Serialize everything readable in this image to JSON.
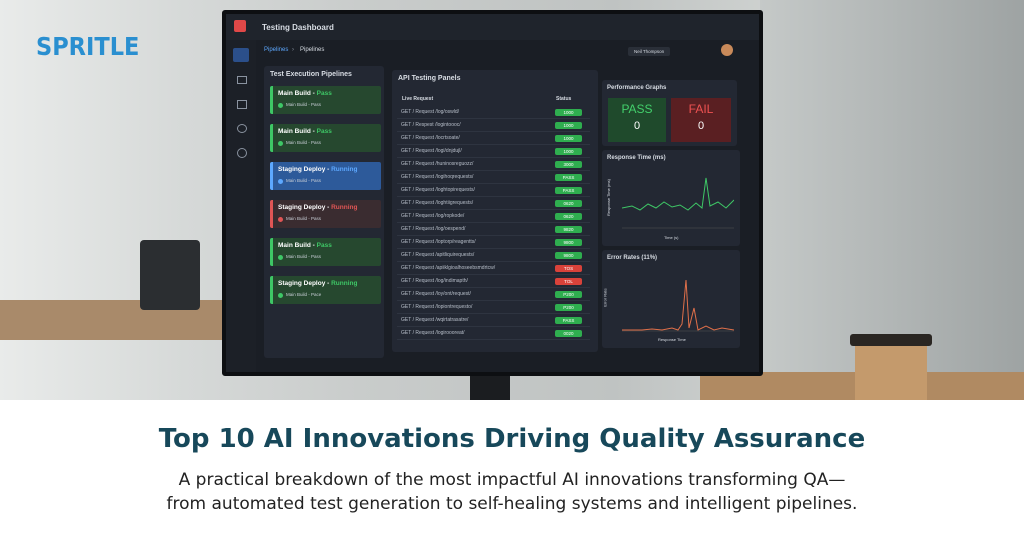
{
  "logo": "SPRITLE",
  "dashboard": {
    "title": "Testing Dashboard",
    "breadcrumb": [
      "Pipelines",
      "Pipelines"
    ],
    "user": "Neil Thompson",
    "pipelines": {
      "title": "Test Execution Pipelines",
      "items": [
        {
          "name": "Main Build -",
          "status": "Pass",
          "sub": "Main Build - Pass",
          "color": "#3ec766",
          "bg": "#26482f"
        },
        {
          "name": "Main Build -",
          "status": "Pass",
          "sub": "Main Build - Pass",
          "color": "#3ec766",
          "bg": "#26482f"
        },
        {
          "name": "Staging Deploy -",
          "status": "Running",
          "sub": "Main Build - Pass",
          "color": "#5da8ff",
          "bg": "#2d5a9a"
        },
        {
          "name": "Staging Deploy -",
          "status": "Running",
          "sub": "Main Build - Pass",
          "color": "#e05555",
          "bg": "#3a2c30"
        },
        {
          "name": "Main Build -",
          "status": "Pass",
          "sub": "Main Build - Pass",
          "color": "#3ec766",
          "bg": "#26482f"
        },
        {
          "name": "Staging Deploy -",
          "status": "Running",
          "sub": "Main Build - Pace",
          "color": "#3ec766",
          "bg": "#26482f"
        }
      ]
    },
    "api": {
      "title": "API Testing Panels",
      "headers": [
        "Live Request",
        "Status"
      ],
      "rows": [
        {
          "request": "GET / Request /log/oswld/",
          "status": "1000",
          "color": "#2fae4f"
        },
        {
          "request": "GET / Respest /logintoooc/",
          "status": "1000",
          "color": "#2fae4f"
        },
        {
          "request": "GET / Request /locrtsoate/",
          "status": "1000",
          "color": "#2fae4f"
        },
        {
          "request": "GET / Request /logi/dnjdujl/",
          "status": "1000",
          "color": "#2fae4f"
        },
        {
          "request": "GET / Request /huninosreguozz/",
          "status": "3000",
          "color": "#2fae4f"
        },
        {
          "request": "GET / Request /logihoqrequests/",
          "status": "PASS",
          "color": "#2fae4f"
        },
        {
          "request": "GET / Request /loghtopirequests/",
          "status": "PASS",
          "color": "#2fae4f"
        },
        {
          "request": "GET / Request /loghtiigrequests/",
          "status": "0620",
          "color": "#2fae4f"
        },
        {
          "request": "GET / Request /log/ropkode/",
          "status": "0620",
          "color": "#2fae4f"
        },
        {
          "request": "GET / Request /log/oespend/",
          "status": "9820",
          "color": "#2fae4f"
        },
        {
          "request": "GET / Request /loptorp/reagentts/",
          "status": "9800",
          "color": "#2fae4f"
        },
        {
          "request": "GET / Request /apitliquirequests/",
          "status": "9800",
          "color": "#2fae4f"
        },
        {
          "request": "GET / Request /apiiklgioalhoseebsmdrtcw/",
          "status": "TOS",
          "color": "#d9423a"
        },
        {
          "request": "GET / Request /log/indimapth/",
          "status": "TOL",
          "color": "#d9423a"
        },
        {
          "request": "GET / Request /loy/ont/request/",
          "status": "P200",
          "color": "#2fae4f"
        },
        {
          "request": "GET / Request /lopiontrequesto/",
          "status": "P200",
          "color": "#2fae4f"
        },
        {
          "request": "GET / Request /wqirtatrasatre/",
          "status": "PASS",
          "color": "#2fae4f"
        },
        {
          "request": "GET / Request /logiroooreat/",
          "status": "0020",
          "color": "#2fae4f"
        }
      ]
    },
    "performance": {
      "title": "Performance Graphs",
      "pass": {
        "label": "PASS",
        "value": 0
      },
      "fail": {
        "label": "FAIL",
        "value": 0
      }
    },
    "response": {
      "title": "Response Time (ms)",
      "x_label": "Time (s)",
      "y_label": "Response Time (ms)"
    },
    "errors": {
      "title": "Error Rates (11%)",
      "x_label": "Response Time",
      "y_label": "Error Rate"
    }
  },
  "headline": "Top 10 AI Innovations Driving Quality Assurance",
  "subtitle": [
    "A practical breakdown of the most impactful AI innovations transforming QA—",
    "from automated test generation to self-healing systems and intelligent pipelines."
  ]
}
